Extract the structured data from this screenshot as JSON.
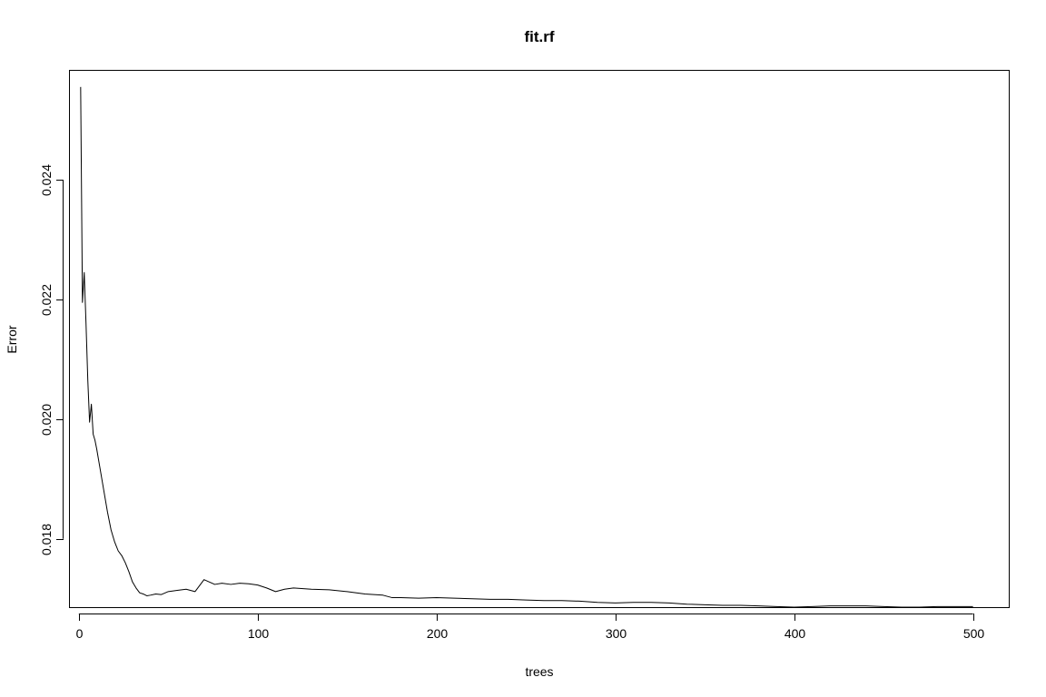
{
  "chart_data": {
    "type": "line",
    "title": "fit.rf",
    "xlabel": "trees",
    "ylabel": "Error",
    "xlim": [
      -5,
      520
    ],
    "ylim": [
      0.01686,
      0.02582
    ],
    "xticks": [
      0,
      100,
      200,
      300,
      400,
      500
    ],
    "xtick_labels": [
      "0",
      "100",
      "200",
      "300",
      "400",
      "500"
    ],
    "yticks": [
      0.018,
      0.02,
      0.022,
      0.024
    ],
    "ytick_labels": [
      "0.018",
      "0.020",
      "0.022",
      "0.024"
    ],
    "grid": false,
    "legend": "none",
    "line_color": "#000000",
    "series": [
      {
        "x": [
          1,
          2,
          3,
          4,
          5,
          6,
          7,
          8,
          9,
          10,
          12,
          14,
          16,
          18,
          20,
          22,
          24,
          26,
          28,
          30,
          32,
          34,
          36,
          38,
          40,
          43,
          46,
          50,
          55,
          60,
          65,
          70,
          73,
          76,
          80,
          85,
          90,
          95,
          100,
          105,
          110,
          115,
          120,
          130,
          140,
          150,
          160,
          170,
          175,
          180,
          190,
          200,
          210,
          220,
          230,
          240,
          250,
          260,
          270,
          280,
          290,
          300,
          310,
          320,
          330,
          340,
          350,
          360,
          370,
          380,
          390,
          400,
          410,
          420,
          430,
          440,
          450,
          460,
          470,
          480,
          490,
          500
        ],
        "y": [
          0.02555,
          0.02195,
          0.02245,
          0.0216,
          0.02065,
          0.01995,
          0.02025,
          0.01975,
          0.01965,
          0.0195,
          0.01915,
          0.0188,
          0.01845,
          0.01815,
          0.01795,
          0.0178,
          0.01772,
          0.0176,
          0.01745,
          0.01728,
          0.01718,
          0.0171,
          0.01708,
          0.01705,
          0.01706,
          0.01708,
          0.01707,
          0.01712,
          0.01714,
          0.01716,
          0.01712,
          0.01732,
          0.01728,
          0.01724,
          0.01726,
          0.01724,
          0.01726,
          0.01725,
          0.01723,
          0.01718,
          0.01712,
          0.01716,
          0.01718,
          0.01716,
          0.01715,
          0.01712,
          0.01708,
          0.01706,
          0.01702,
          0.01702,
          0.01701,
          0.01702,
          0.01701,
          0.017,
          0.01699,
          0.01699,
          0.01698,
          0.01697,
          0.01697,
          0.01696,
          0.01694,
          0.01693,
          0.01694,
          0.01694,
          0.01693,
          0.01691,
          0.0169,
          0.01689,
          0.01689,
          0.01688,
          0.01687,
          0.01686,
          0.01687,
          0.01688,
          0.01688,
          0.01688,
          0.01687,
          0.01686,
          0.01686,
          0.01687,
          0.01687,
          0.01687
        ]
      }
    ]
  }
}
